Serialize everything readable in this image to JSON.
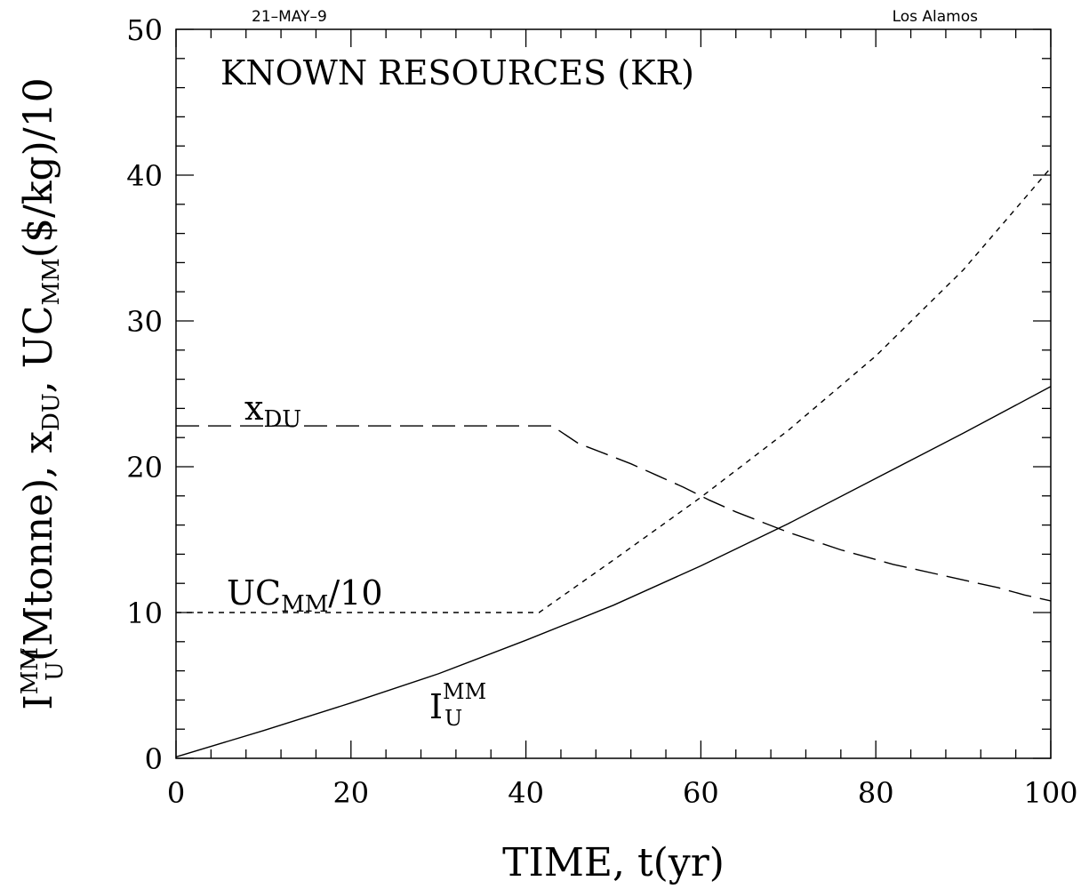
{
  "header": {
    "date": "21–MAY–9",
    "site": "Los Alamos"
  },
  "chart_data": {
    "type": "line",
    "title": "KNOWN RESOURCES (KR)",
    "xlabel": "TIME, t(yr)",
    "ylabel": {
      "main": "I",
      "sup": "MM",
      "sub": "U",
      "rest1": "(Mtonne), x",
      "sub2": "DU",
      "rest2": ", UC",
      "sub3": "MM",
      "rest3": "($/kg)/10"
    },
    "xlim": [
      0,
      100
    ],
    "ylim": [
      0,
      50
    ],
    "xticks": [
      0,
      20,
      40,
      60,
      80,
      100
    ],
    "yticks": [
      0,
      10,
      20,
      30,
      40,
      50
    ],
    "grid": false,
    "series": [
      {
        "name": "I_U^MM",
        "style": "solid",
        "x": [
          0,
          10,
          20,
          30,
          40,
          50,
          60,
          70,
          80,
          90,
          100
        ],
        "y": [
          0.1,
          1.9,
          3.8,
          5.8,
          8.1,
          10.5,
          13.2,
          16.1,
          19.2,
          22.3,
          25.5
        ]
      },
      {
        "name": "UC_MM/10",
        "style": "short-dash",
        "x": [
          0,
          41.5,
          50,
          60,
          70,
          80,
          90,
          100
        ],
        "y": [
          10,
          10,
          13.6,
          17.9,
          22.5,
          27.6,
          33.5,
          40.5
        ]
      },
      {
        "name": "x_DU",
        "style": "long-dash",
        "x": [
          0,
          43,
          46,
          49,
          52,
          55,
          58,
          61,
          64,
          67,
          70,
          73,
          76,
          79,
          82,
          85,
          88,
          91,
          94,
          97,
          100
        ],
        "y": [
          22.8,
          22.8,
          21.6,
          20.9,
          20.2,
          19.4,
          18.6,
          17.7,
          16.9,
          16.2,
          15.5,
          14.9,
          14.3,
          13.8,
          13.3,
          12.9,
          12.5,
          12.1,
          11.7,
          11.2,
          10.8
        ]
      }
    ],
    "labels": {
      "kr": "KNOWN RESOURCES (KR)",
      "xdu_main": "x",
      "xdu_sub": "DU",
      "uc_main": "UC",
      "uc_sub": "MM",
      "uc_rest": "/10",
      "iu_main": "I",
      "iu_sup": "MM",
      "iu_sub": "U"
    }
  }
}
